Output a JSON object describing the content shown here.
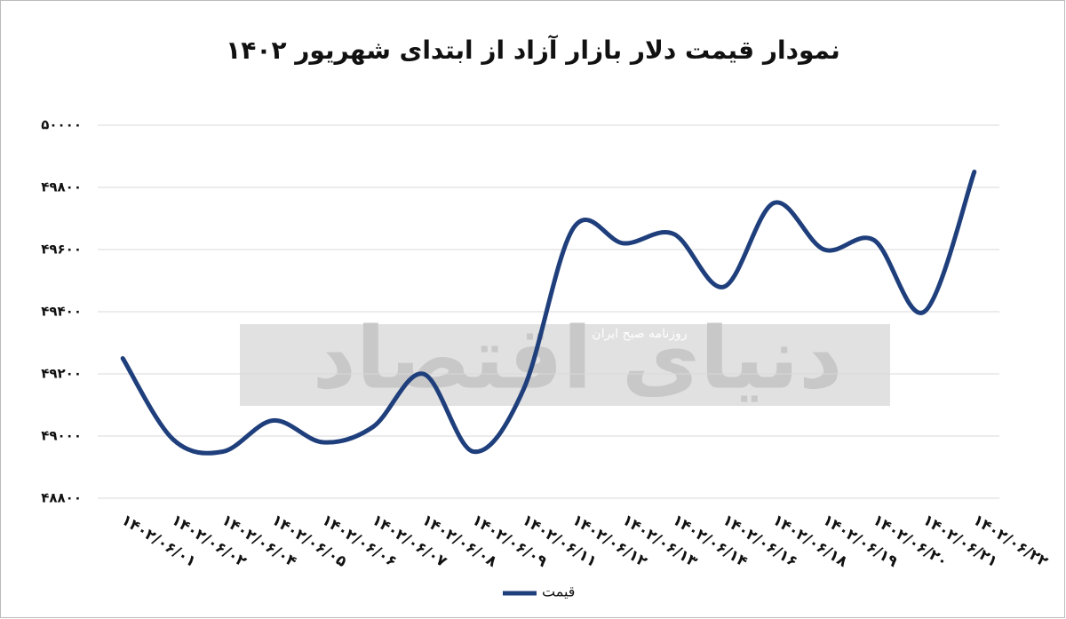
{
  "chart_data": {
    "type": "line",
    "title": "نمودار قیمت دلار بازار آزاد از ابتدای شهریور ۱۴۰۲",
    "categories": [
      "۱۴۰۲/۰۶/۰۱",
      "۱۴۰۲/۰۶/۰۲",
      "۱۴۰۲/۰۶/۰۴",
      "۱۴۰۲/۰۶/۰۵",
      "۱۴۰۲/۰۶/۰۶",
      "۱۴۰۲/۰۶/۰۷",
      "۱۴۰۲/۰۶/۰۸",
      "۱۴۰۲/۰۶/۰۹",
      "۱۴۰۲/۰۶/۱۱",
      "۱۴۰۲/۰۶/۱۲",
      "۱۴۰۲/۰۶/۱۳",
      "۱۴۰۲/۰۶/۱۴",
      "۱۴۰۲/۰۶/۱۶",
      "۱۴۰۲/۰۶/۱۸",
      "۱۴۰۲/۰۶/۱۹",
      "۱۴۰۲/۰۶/۲۰",
      "۱۴۰۲/۰۶/۲۱",
      "۱۴۰۲/۰۶/۲۲"
    ],
    "series": [
      {
        "name": "قیمت",
        "color": "#1f3f7c",
        "values": [
          49250,
          48990,
          48950,
          49050,
          48980,
          49030,
          49200,
          48950,
          49150,
          49670,
          49620,
          49650,
          49480,
          49750,
          49600,
          49630,
          49400,
          49850
        ]
      }
    ],
    "ylim": [
      48800,
      50000
    ],
    "yticks": [
      {
        "value": 48800,
        "label": "۴۸۸۰۰"
      },
      {
        "value": 49000,
        "label": "۴۹۰۰۰"
      },
      {
        "value": 49200,
        "label": "۴۹۲۰۰"
      },
      {
        "value": 49400,
        "label": "۴۹۴۰۰"
      },
      {
        "value": 49600,
        "label": "۴۹۶۰۰"
      },
      {
        "value": 49800,
        "label": "۴۹۸۰۰"
      },
      {
        "value": 50000,
        "label": "۵۰۰۰۰"
      }
    ],
    "grid": true,
    "legend": "bottom",
    "watermark": {
      "brand": "دنیای اقتصاد",
      "tagline": "روزنامه صبح ایران"
    }
  }
}
